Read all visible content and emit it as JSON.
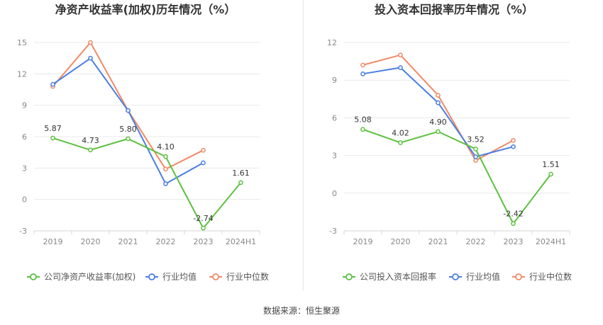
{
  "source_text": "数据来源：恒生聚源",
  "chart_data": [
    {
      "type": "line",
      "title": "净资产收益率(加权)历年情况（%）",
      "categories": [
        "2019",
        "2020",
        "2021",
        "2022",
        "2023",
        "2024H1"
      ],
      "ylim": [
        -3,
        15
      ],
      "yticks": [
        -3,
        0,
        3,
        6,
        9,
        12,
        15
      ],
      "grid": true,
      "legend_position": "bottom",
      "series": [
        {
          "name": "公司净资产收益率(加权)",
          "color": "#5cc13f",
          "labels": true,
          "values": [
            5.87,
            4.73,
            5.8,
            4.1,
            -2.74,
            1.61
          ],
          "value_labels": [
            "5.87",
            "4.73",
            "5.80",
            "4.10",
            "-2.74",
            "1.61"
          ]
        },
        {
          "name": "行业均值",
          "color": "#4a7fe0",
          "labels": false,
          "values": [
            11.0,
            13.5,
            8.5,
            1.5,
            3.5,
            null
          ]
        },
        {
          "name": "行业中位数",
          "color": "#f08a66",
          "labels": false,
          "values": [
            10.8,
            15.0,
            8.5,
            2.9,
            4.7,
            null
          ]
        }
      ]
    },
    {
      "type": "line",
      "title": "投入资本回报率历年情况（%）",
      "categories": [
        "2019",
        "2020",
        "2021",
        "2022",
        "2023",
        "2024H1"
      ],
      "ylim": [
        -3,
        12
      ],
      "yticks": [
        -3,
        0,
        3,
        6,
        9,
        12
      ],
      "grid": true,
      "legend_position": "bottom",
      "series": [
        {
          "name": "公司投入资本回报率",
          "color": "#5cc13f",
          "labels": true,
          "values": [
            5.08,
            4.02,
            4.9,
            3.52,
            -2.42,
            1.51
          ],
          "value_labels": [
            "5.08",
            "4.02",
            "4.90",
            "3.52",
            "-2.42",
            "1.51"
          ]
        },
        {
          "name": "行业均值",
          "color": "#4a7fe0",
          "labels": false,
          "values": [
            9.5,
            10.0,
            7.2,
            2.9,
            3.7,
            null
          ]
        },
        {
          "name": "行业中位数",
          "color": "#f08a66",
          "labels": false,
          "values": [
            10.2,
            11.0,
            7.8,
            2.6,
            4.2,
            null
          ]
        }
      ]
    }
  ]
}
